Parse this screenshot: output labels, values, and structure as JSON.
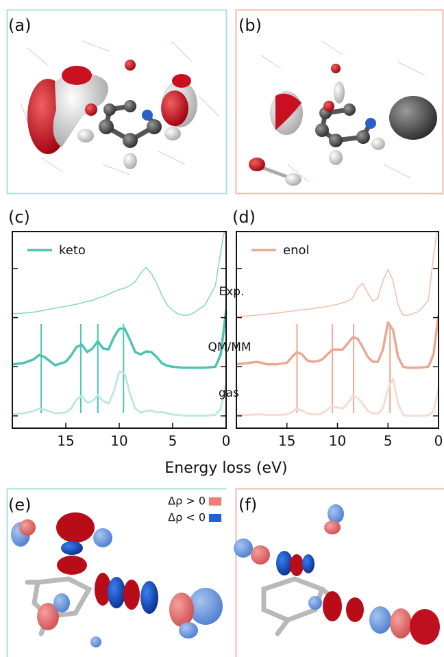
{
  "figure": {
    "panels": {
      "a": "(a)",
      "b": "(b)",
      "e": "(e)",
      "f": "(f)"
    },
    "xlabel": "Energy loss (eV)",
    "annotations": [
      "Exp.",
      "QM/MM",
      "gas"
    ],
    "density_legend": [
      {
        "label": "Δρ > 0",
        "color": "#f27a7a"
      },
      {
        "label": "Δρ < 0",
        "color": "#1d63d6"
      }
    ]
  },
  "chart_data": [
    {
      "type": "line",
      "title": "(c)",
      "legend": "keto",
      "x": [
        0,
        0.5,
        1,
        2,
        3,
        3.5,
        4,
        4.5,
        5,
        5.5,
        6,
        6.5,
        7,
        7.5,
        8,
        8.5,
        9,
        9.5,
        10,
        10.5,
        11,
        11.5,
        12,
        12.5,
        13,
        13.5,
        14,
        14.5,
        15,
        16,
        17,
        17.5,
        18,
        19,
        20
      ],
      "series": [
        {
          "color": "#7fd6ca",
          "width": 1.5,
          "values": [
            4.2,
            3.6,
            2.9,
            2.5,
            2.35,
            2.3,
            2.3,
            2.32,
            2.4,
            2.5,
            2.7,
            2.95,
            3.15,
            3.27,
            3.15,
            2.98,
            2.9,
            2.85,
            2.82,
            2.78,
            2.72,
            2.68,
            2.65,
            2.6,
            2.58,
            2.55,
            2.52,
            2.5,
            2.48,
            2.44,
            2.4,
            2.38,
            2.36,
            2.34,
            2.33
          ]
        },
        {
          "color": "#4cc3b3",
          "width": 3.5,
          "values": [
            2.4,
            1.5,
            1.25,
            1.23,
            1.23,
            1.23,
            1.23,
            1.24,
            1.25,
            1.27,
            1.32,
            1.45,
            1.55,
            1.56,
            1.5,
            1.55,
            1.8,
            2.03,
            2.02,
            1.85,
            1.6,
            1.62,
            1.77,
            1.62,
            1.55,
            1.7,
            1.65,
            1.48,
            1.35,
            1.28,
            1.45,
            1.49,
            1.4,
            1.32,
            1.3
          ]
        },
        {
          "color": "#bfe8e2",
          "width": 3,
          "values": [
            0.9,
            0.4,
            0.27,
            0.25,
            0.25,
            0.25,
            0.26,
            0.27,
            0.28,
            0.3,
            0.33,
            0.32,
            0.36,
            0.35,
            0.32,
            0.4,
            0.7,
            1.12,
            1.15,
            0.75,
            0.5,
            0.55,
            0.67,
            0.55,
            0.52,
            0.66,
            0.58,
            0.4,
            0.32,
            0.3,
            0.38,
            0.4,
            0.35,
            0.3,
            0.28
          ]
        }
      ],
      "sticks": [
        17.3,
        13.6,
        12.0,
        9.6
      ],
      "sticks_color": "#4cc3b3",
      "xlim": [
        20,
        0
      ],
      "xticks": [
        15,
        10,
        5,
        0
      ],
      "ylim": [
        0,
        4
      ],
      "yticks": [
        0.25,
        1.25,
        2.25,
        3.25
      ]
    },
    {
      "type": "line",
      "title": "(d)",
      "legend": "enol",
      "x": [
        0,
        0.5,
        1,
        2,
        3,
        3.5,
        4,
        4.5,
        5,
        5.5,
        6,
        6.5,
        7,
        7.5,
        8,
        8.5,
        9,
        9.5,
        10,
        10.5,
        11,
        11.5,
        12,
        12.5,
        13,
        13.5,
        14,
        14.5,
        15,
        16,
        17,
        17.5,
        18,
        19,
        20
      ],
      "series": [
        {
          "color": "#f2bcaa",
          "width": 1.5,
          "values": [
            4.2,
            3.5,
            2.6,
            2.37,
            2.3,
            2.3,
            2.5,
            3.0,
            3.23,
            3.0,
            2.65,
            2.58,
            2.75,
            2.95,
            2.85,
            2.65,
            2.58,
            2.55,
            2.52,
            2.5,
            2.48,
            2.46,
            2.45,
            2.43,
            2.42,
            2.41,
            2.4,
            2.38,
            2.37,
            2.34,
            2.32,
            2.31,
            2.3,
            2.28,
            2.27
          ]
        },
        {
          "color": "#eba893",
          "width": 3.5,
          "values": [
            2.3,
            1.5,
            1.25,
            1.23,
            1.23,
            1.25,
            1.45,
            2.0,
            2.15,
            1.6,
            1.35,
            1.35,
            1.45,
            1.65,
            1.82,
            1.85,
            1.72,
            1.6,
            1.6,
            1.6,
            1.5,
            1.4,
            1.36,
            1.35,
            1.38,
            1.5,
            1.55,
            1.45,
            1.33,
            1.3,
            1.3,
            1.33,
            1.35,
            1.32,
            1.3
          ]
        },
        {
          "color": "#f7dcd3",
          "width": 3,
          "values": [
            0.8,
            0.35,
            0.26,
            0.25,
            0.25,
            0.27,
            0.5,
            1.0,
            0.8,
            0.4,
            0.3,
            0.3,
            0.35,
            0.5,
            0.62,
            0.65,
            0.5,
            0.4,
            0.42,
            0.45,
            0.38,
            0.3,
            0.28,
            0.28,
            0.3,
            0.36,
            0.4,
            0.33,
            0.28,
            0.27,
            0.27,
            0.28,
            0.28,
            0.27,
            0.27
          ]
        }
      ],
      "sticks": [
        14.0,
        10.5,
        8.4,
        4.8
      ],
      "sticks_color": "#eba893",
      "xlim": [
        20,
        0
      ],
      "xticks": [
        15,
        10,
        5,
        0
      ],
      "ylim": [
        0,
        4
      ],
      "yticks": [
        0.25,
        1.25,
        2.25,
        3.25
      ]
    }
  ]
}
